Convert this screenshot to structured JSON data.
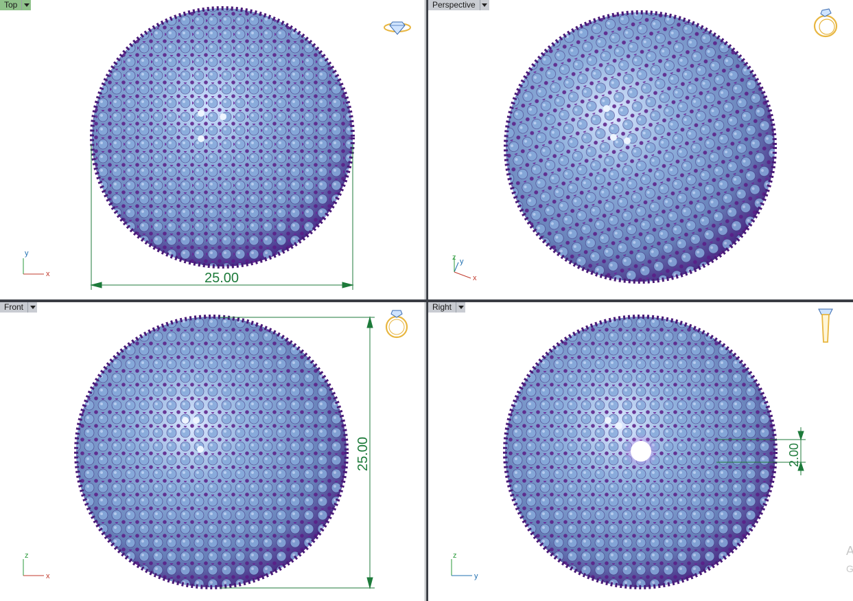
{
  "viewports": [
    {
      "id": "top",
      "label": "Top",
      "active": true
    },
    {
      "id": "perspective",
      "label": "Perspective",
      "active": false
    },
    {
      "id": "front",
      "label": "Front",
      "active": false
    },
    {
      "id": "right",
      "label": "Right",
      "active": false
    }
  ],
  "dimensions": {
    "top_width": "25.00",
    "front_height": "25.00",
    "right_hole": "2.00"
  },
  "axes": {
    "top": {
      "h": "x",
      "v": "y"
    },
    "perspective": {
      "h": "x",
      "v": "y",
      "z": "z"
    },
    "front": {
      "h": "x",
      "v": "z"
    },
    "right": {
      "h": "y",
      "v": "z"
    }
  },
  "edge_text": [
    "A",
    "G"
  ],
  "colors": {
    "tab_active": "#8fc28a",
    "tab_inactive": "#c9ccd2",
    "dimension": "#1d7a3a",
    "gem": "#8aaed8",
    "prong": "#5a1c86",
    "icon_gold": "#e8b640"
  },
  "icons": [
    "diamond-ring-icon",
    "ring-perspective-icon",
    "ring-front-icon",
    "ring-side-icon"
  ]
}
